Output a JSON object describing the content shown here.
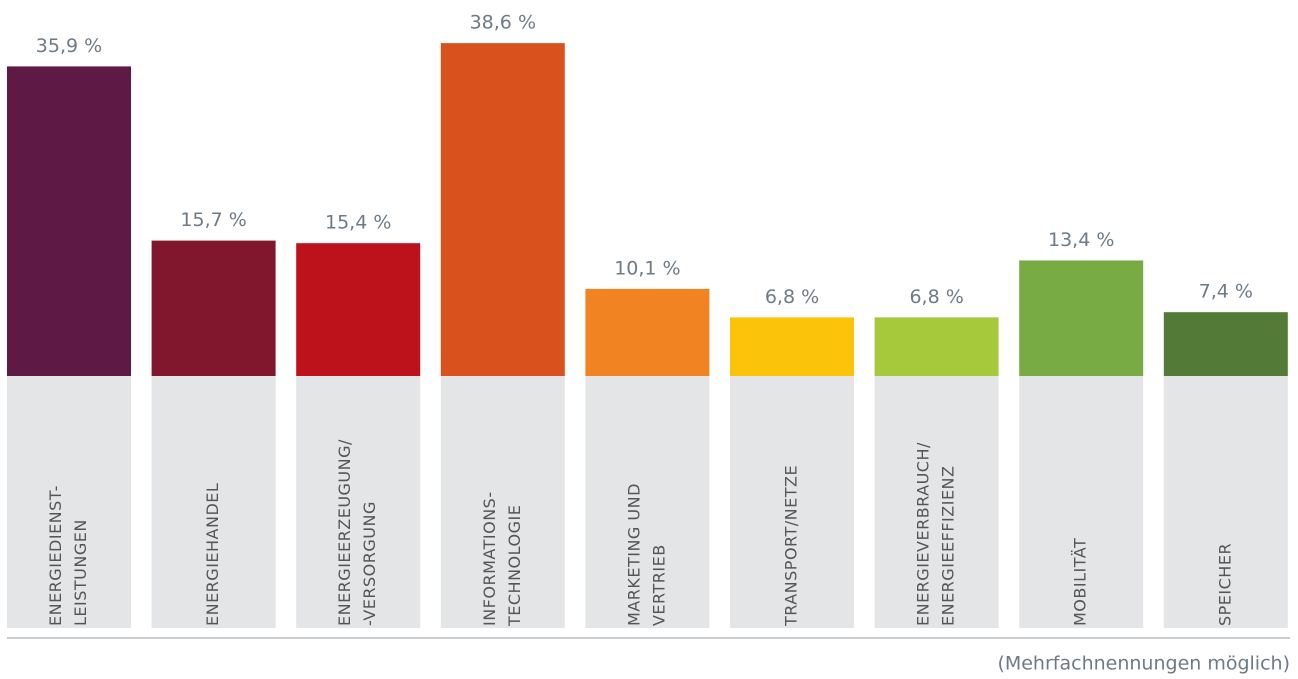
{
  "chart_data": {
    "type": "bar",
    "categories": [
      [
        "ENERGIEDIENST-",
        "LEISTUNGEN"
      ],
      [
        "ENERGIEHANDEL"
      ],
      [
        "ENERGIEERZEUGUNG/",
        "-VERSORGUNG"
      ],
      [
        "INFORMATIONS-",
        "TECHNOLOGIE"
      ],
      [
        "MARKETING UND",
        "VERTRIEB"
      ],
      [
        "TRANSPORT/NETZE"
      ],
      [
        "ENERGIEVERBRAUCH/",
        "ENERGIEEFFIZIENZ"
      ],
      [
        "MOBILITÄT"
      ],
      [
        "SPEICHER"
      ]
    ],
    "values": [
      35.9,
      15.7,
      15.4,
      38.6,
      10.1,
      6.8,
      6.8,
      13.4,
      7.4
    ],
    "value_labels": [
      "35,9 %",
      "15,7 %",
      "15,4 %",
      "38,6 %",
      "10,1 %",
      "6,8 %",
      "6,8 %",
      "13,4 %",
      "7,4 %"
    ],
    "colors": [
      "#5e1a45",
      "#80172c",
      "#bd111b",
      "#d9511d",
      "#f28322",
      "#fcc30b",
      "#a6c93c",
      "#78ab43",
      "#547a38"
    ],
    "ylim": [
      0,
      43.6
    ],
    "note": "(Mehrfachnennungen möglich)"
  }
}
